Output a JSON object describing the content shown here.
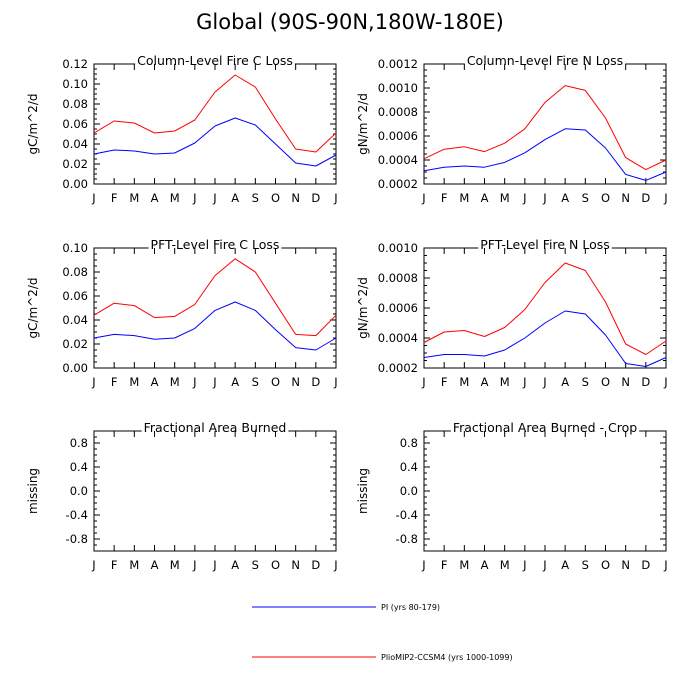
{
  "figure": {
    "title": "Global (90S-90N,180W-180E)"
  },
  "series_styles": [
    {
      "color": "#0000ff",
      "legend": "PI (yrs 80-179)"
    },
    {
      "color": "#ff0000",
      "legend": "PlioMIP2-CCSM4 (yrs 1000-1099)"
    }
  ],
  "chart_data": [
    {
      "type": "line",
      "title": "Column-Level Fire C Loss",
      "ylabel": "gC/m^2/d",
      "categories": [
        "J",
        "F",
        "M",
        "A",
        "M",
        "J",
        "J",
        "A",
        "S",
        "O",
        "N",
        "D",
        "J"
      ],
      "ylim": [
        0,
        0.12
      ],
      "yticks": [
        "0.00",
        "0.02",
        "0.04",
        "0.06",
        "0.08",
        "0.10",
        "0.12"
      ],
      "series": [
        {
          "name": "PI (yrs 80-179)",
          "values": [
            0.03,
            0.034,
            0.033,
            0.03,
            0.031,
            0.041,
            0.058,
            0.066,
            0.059,
            0.04,
            0.021,
            0.018,
            0.029
          ]
        },
        {
          "name": "PlioMIP2-CCSM4 (yrs 1000-1099)",
          "values": [
            0.051,
            0.063,
            0.061,
            0.051,
            0.053,
            0.064,
            0.092,
            0.109,
            0.097,
            0.065,
            0.035,
            0.032,
            0.051
          ]
        }
      ]
    },
    {
      "type": "line",
      "title": "Column-Level Fire N Loss",
      "ylabel": "gN/m^2/d",
      "categories": [
        "J",
        "F",
        "M",
        "A",
        "M",
        "J",
        "J",
        "A",
        "S",
        "O",
        "N",
        "D",
        "J"
      ],
      "ylim": [
        0.0002,
        0.0012
      ],
      "yticks": [
        "0.0002",
        "0.0004",
        "0.0006",
        "0.0008",
        "0.0010",
        "0.0012"
      ],
      "series": [
        {
          "name": "PI (yrs 80-179)",
          "values": [
            0.00031,
            0.00034,
            0.00035,
            0.00034,
            0.00038,
            0.00046,
            0.00057,
            0.00066,
            0.00065,
            0.0005,
            0.00028,
            0.00023,
            0.0003
          ]
        },
        {
          "name": "PlioMIP2-CCSM4 (yrs 1000-1099)",
          "values": [
            0.00041,
            0.00049,
            0.00051,
            0.00047,
            0.00054,
            0.00066,
            0.00088,
            0.00102,
            0.00098,
            0.00075,
            0.00042,
            0.00032,
            0.0004
          ]
        }
      ]
    },
    {
      "type": "line",
      "title": "PFT-Level Fire C Loss",
      "ylabel": "gC/m^2/d",
      "categories": [
        "J",
        "F",
        "M",
        "A",
        "M",
        "J",
        "J",
        "A",
        "S",
        "O",
        "N",
        "D",
        "J"
      ],
      "ylim": [
        0,
        0.1
      ],
      "yticks": [
        "0.00",
        "0.02",
        "0.04",
        "0.06",
        "0.08",
        "0.10"
      ],
      "series": [
        {
          "name": "PI (yrs 80-179)",
          "values": [
            0.025,
            0.028,
            0.027,
            0.024,
            0.025,
            0.033,
            0.048,
            0.055,
            0.048,
            0.032,
            0.017,
            0.015,
            0.025
          ]
        },
        {
          "name": "PlioMIP2-CCSM4 (yrs 1000-1099)",
          "values": [
            0.044,
            0.054,
            0.052,
            0.042,
            0.043,
            0.053,
            0.077,
            0.091,
            0.08,
            0.054,
            0.028,
            0.027,
            0.044
          ]
        }
      ]
    },
    {
      "type": "line",
      "title": "PFT-Level Fire N Loss",
      "ylabel": "gN/m^2/d",
      "categories": [
        "J",
        "F",
        "M",
        "A",
        "M",
        "J",
        "J",
        "A",
        "S",
        "O",
        "N",
        "D",
        "J"
      ],
      "ylim": [
        0.0002,
        0.001
      ],
      "yticks": [
        "0.0002",
        "0.0004",
        "0.0006",
        "0.0008",
        "0.0010"
      ],
      "series": [
        {
          "name": "PI (yrs 80-179)",
          "values": [
            0.00027,
            0.00029,
            0.00029,
            0.00028,
            0.00032,
            0.0004,
            0.0005,
            0.00058,
            0.00056,
            0.00042,
            0.00023,
            0.00021,
            0.00027
          ]
        },
        {
          "name": "PlioMIP2-CCSM4 (yrs 1000-1099)",
          "values": [
            0.00037,
            0.00044,
            0.00045,
            0.00041,
            0.00047,
            0.00059,
            0.00077,
            0.0009,
            0.00085,
            0.00064,
            0.00036,
            0.00029,
            0.00038
          ]
        }
      ]
    },
    {
      "type": "line",
      "title": "Fractional Area Burned",
      "ylabel": "missing",
      "categories": [
        "J",
        "F",
        "M",
        "A",
        "M",
        "J",
        "J",
        "A",
        "S",
        "O",
        "N",
        "D",
        "J"
      ],
      "ylim": [
        -1.0,
        1.0
      ],
      "yticks": [
        "-0.8",
        "-0.4",
        "0.0",
        "0.4",
        "0.8"
      ],
      "series": []
    },
    {
      "type": "line",
      "title": "Fractional Area Burned - Crop",
      "ylabel": "missing",
      "categories": [
        "J",
        "F",
        "M",
        "A",
        "M",
        "J",
        "J",
        "A",
        "S",
        "O",
        "N",
        "D",
        "J"
      ],
      "ylim": [
        -1.0,
        1.0
      ],
      "yticks": [
        "-0.8",
        "-0.4",
        "0.0",
        "0.4",
        "0.8"
      ],
      "series": []
    }
  ]
}
